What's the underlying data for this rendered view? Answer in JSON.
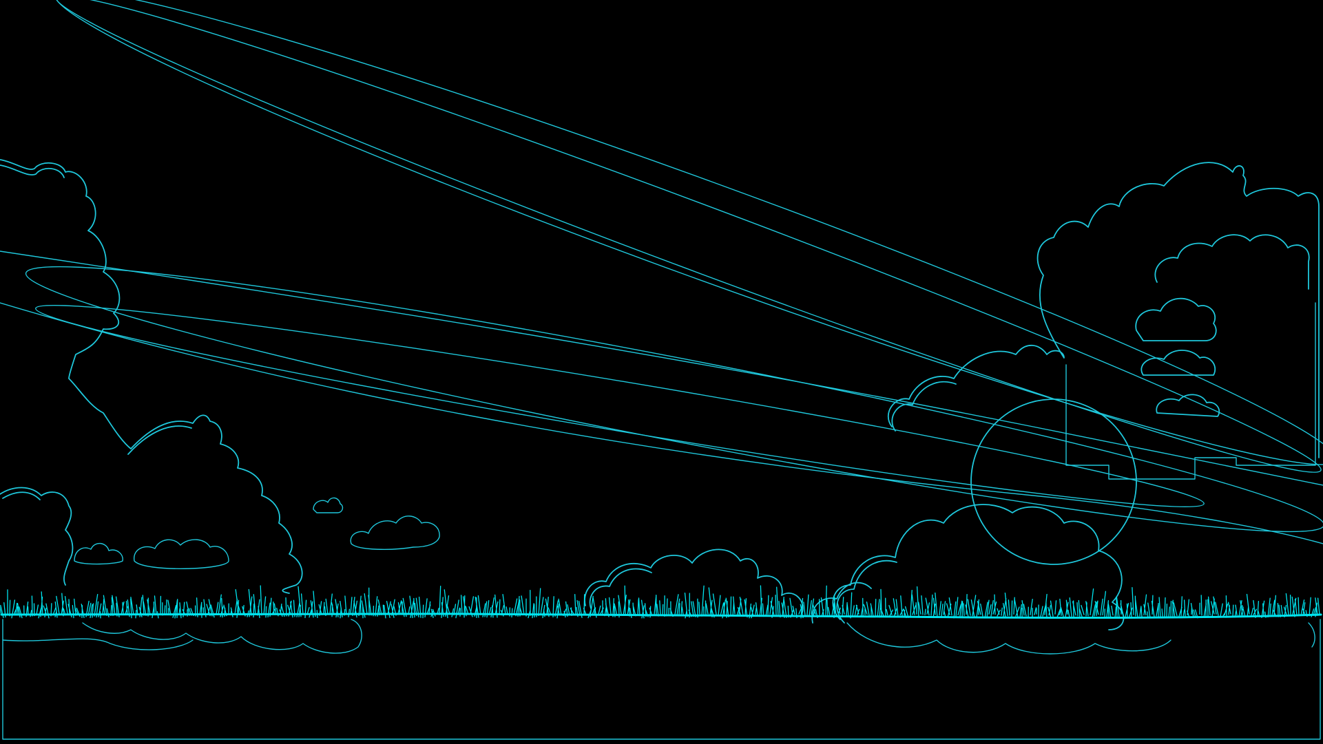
{
  "scene": {
    "background_color": "#000000",
    "line_color": "#1fc8dc",
    "grass_color": "#00e5f0",
    "style": "wireframe-outline",
    "elements": [
      "orbit-rings",
      "cumulus-clouds",
      "grass-horizon",
      "ground-frame"
    ]
  }
}
